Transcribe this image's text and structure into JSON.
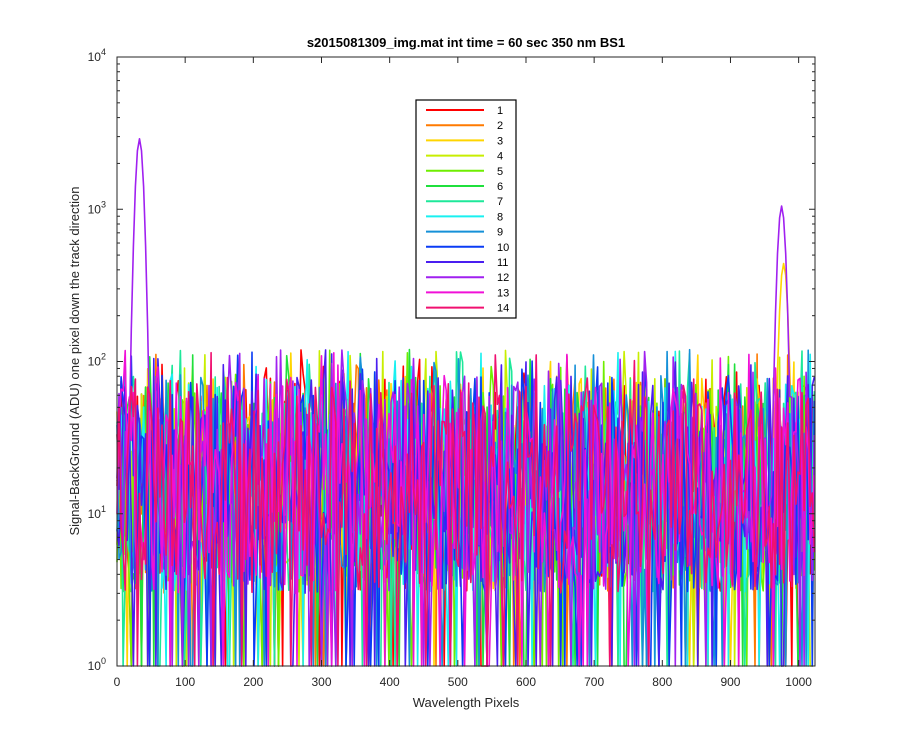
{
  "chart_data": {
    "type": "line",
    "title": "s2015081309_img.mat int time = 60 sec  350 nm BS1",
    "xlabel": "Wavelength Pixels",
    "ylabel": "Signal-BackGround (ADU) one pixel down the track direction",
    "xlim": [
      0,
      1024
    ],
    "ylim": [
      1,
      10000
    ],
    "yscale": "log",
    "x_ticks": [
      0,
      100,
      200,
      300,
      400,
      500,
      600,
      700,
      800,
      900,
      1000
    ],
    "y_tick_labels": [
      {
        "value": 1,
        "base": "10",
        "exp": "0"
      },
      {
        "value": 10,
        "base": "10",
        "exp": "1"
      },
      {
        "value": 100,
        "base": "10",
        "exp": "2"
      },
      {
        "value": 1000,
        "base": "10",
        "exp": "3"
      },
      {
        "value": 10000,
        "base": "10",
        "exp": "4"
      }
    ],
    "grid": false,
    "legend_position": "top-center",
    "series": [
      {
        "name": "1",
        "color": "#ff0000"
      },
      {
        "name": "2",
        "color": "#ff7a00"
      },
      {
        "name": "3",
        "color": "#ffd500"
      },
      {
        "name": "4",
        "color": "#c8ee00"
      },
      {
        "name": "5",
        "color": "#6fee00"
      },
      {
        "name": "6",
        "color": "#1fe03c"
      },
      {
        "name": "7",
        "color": "#1ee89a"
      },
      {
        "name": "8",
        "color": "#19f0f0"
      },
      {
        "name": "9",
        "color": "#1590d8"
      },
      {
        "name": "10",
        "color": "#0a3cf5"
      },
      {
        "name": "11",
        "color": "#4a1ef0"
      },
      {
        "name": "12",
        "color": "#a020f0"
      },
      {
        "name": "13",
        "color": "#f010d8"
      },
      {
        "name": "14",
        "color": "#f01070"
      }
    ],
    "noise_floor_range": [
      3,
      80
    ],
    "peaks": [
      {
        "x": 33,
        "series": "12",
        "y": 2900
      },
      {
        "x": 975,
        "series": "12",
        "y": 1050
      },
      {
        "x": 978,
        "series": "3",
        "y": 440
      }
    ]
  }
}
